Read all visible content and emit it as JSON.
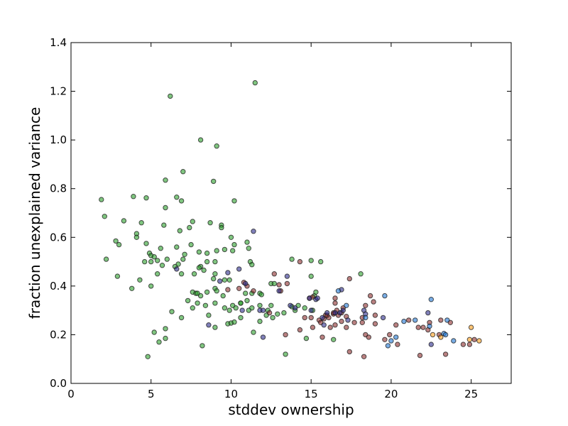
{
  "chart_data": {
    "type": "scatter",
    "title": "",
    "xlabel": "stddev ownership",
    "ylabel": "fraction unexplained variance",
    "xlim": [
      0,
      27.5
    ],
    "ylim": [
      0,
      1.4
    ],
    "xticks": [
      "0",
      "5",
      "10",
      "15",
      "20",
      "25"
    ],
    "yticks": [
      "0.0",
      "0.2",
      "0.4",
      "0.6",
      "0.8",
      "1.0",
      "1.2",
      "1.4"
    ],
    "grid": false,
    "legend": "none",
    "series": [
      {
        "color": "#2ca02c",
        "points": [
          [
            6.2,
            1.18
          ],
          [
            11.5,
            1.235
          ],
          [
            8.1,
            1.0
          ],
          [
            9.1,
            0.975
          ],
          [
            7.0,
            0.87
          ],
          [
            5.9,
            0.835
          ],
          [
            8.9,
            0.83
          ],
          [
            6.6,
            0.765
          ],
          [
            4.7,
            0.762
          ],
          [
            3.9,
            0.768
          ],
          [
            6.9,
            0.75
          ],
          [
            10.2,
            0.75
          ],
          [
            1.9,
            0.755
          ],
          [
            2.1,
            0.686
          ],
          [
            5.9,
            0.722
          ],
          [
            4.4,
            0.66
          ],
          [
            3.3,
            0.668
          ],
          [
            9.4,
            0.65
          ],
          [
            8.7,
            0.66
          ],
          [
            9.4,
            0.64
          ],
          [
            7.6,
            0.665
          ],
          [
            5.8,
            0.65
          ],
          [
            7.4,
            0.64
          ],
          [
            6.8,
            0.627
          ],
          [
            4.1,
            0.615
          ],
          [
            4.1,
            0.6
          ],
          [
            4.9,
            0.535
          ],
          [
            10.0,
            0.6
          ],
          [
            10.2,
            0.57
          ],
          [
            3.0,
            0.57
          ],
          [
            2.8,
            0.585
          ],
          [
            4.7,
            0.575
          ],
          [
            5.6,
            0.555
          ],
          [
            6.6,
            0.56
          ],
          [
            7.5,
            0.57
          ],
          [
            8.0,
            0.54
          ],
          [
            9.1,
            0.545
          ],
          [
            9.6,
            0.55
          ],
          [
            10.1,
            0.545
          ],
          [
            11.0,
            0.58
          ],
          [
            11.1,
            0.555
          ],
          [
            2.2,
            0.51
          ],
          [
            5.0,
            0.525
          ],
          [
            5.2,
            0.52
          ],
          [
            5.4,
            0.505
          ],
          [
            4.6,
            0.5
          ],
          [
            5.0,
            0.5
          ],
          [
            6.0,
            0.51
          ],
          [
            6.7,
            0.49
          ],
          [
            7.0,
            0.51
          ],
          [
            7.1,
            0.53
          ],
          [
            8.5,
            0.535
          ],
          [
            8.1,
            0.48
          ],
          [
            8.3,
            0.465
          ],
          [
            8.5,
            0.5
          ],
          [
            9.0,
            0.5
          ],
          [
            11.2,
            0.5
          ],
          [
            11.3,
            0.488
          ],
          [
            5.7,
            0.485
          ],
          [
            2.9,
            0.44
          ],
          [
            3.8,
            0.39
          ],
          [
            4.3,
            0.425
          ],
          [
            5.0,
            0.4
          ],
          [
            5.4,
            0.45
          ],
          [
            6.5,
            0.48
          ],
          [
            6.9,
            0.45
          ],
          [
            7.7,
            0.45
          ],
          [
            8.0,
            0.475
          ],
          [
            9.0,
            0.45
          ],
          [
            9.9,
            0.425
          ],
          [
            8.9,
            0.43
          ],
          [
            7.6,
            0.375
          ],
          [
            7.8,
            0.37
          ],
          [
            7.9,
            0.37
          ],
          [
            8.1,
            0.36
          ],
          [
            8.5,
            0.375
          ],
          [
            9.0,
            0.39
          ],
          [
            9.1,
            0.38
          ],
          [
            9.5,
            0.36
          ],
          [
            10.1,
            0.32
          ],
          [
            10.3,
            0.31
          ],
          [
            10.6,
            0.33
          ],
          [
            11.0,
            0.34
          ],
          [
            11.3,
            0.31
          ],
          [
            11.8,
            0.32
          ],
          [
            12.5,
            0.32
          ],
          [
            7.3,
            0.34
          ],
          [
            7.6,
            0.31
          ],
          [
            7.9,
            0.33
          ],
          [
            8.4,
            0.32
          ],
          [
            9.0,
            0.33
          ],
          [
            9.6,
            0.31
          ],
          [
            9.9,
            0.3
          ],
          [
            10.6,
            0.33
          ],
          [
            8.6,
            0.28
          ],
          [
            9.0,
            0.23
          ],
          [
            6.9,
            0.27
          ],
          [
            9.8,
            0.245
          ],
          [
            10.0,
            0.248
          ],
          [
            10.2,
            0.252
          ],
          [
            10.6,
            0.27
          ],
          [
            11.4,
            0.21
          ],
          [
            11.8,
            0.255
          ],
          [
            12.2,
            0.28
          ],
          [
            12.3,
            0.3
          ],
          [
            12.6,
            0.27
          ],
          [
            12.9,
            0.285
          ],
          [
            13.3,
            0.29
          ],
          [
            13.8,
            0.315
          ],
          [
            14.2,
            0.32
          ],
          [
            14.6,
            0.31
          ],
          [
            14.0,
            0.3
          ],
          [
            15.1,
            0.3
          ],
          [
            15.2,
            0.36
          ],
          [
            15.3,
            0.375
          ],
          [
            14.7,
            0.185
          ],
          [
            15.6,
            0.5
          ],
          [
            15.0,
            0.505
          ],
          [
            15.0,
            0.44
          ],
          [
            13.8,
            0.51
          ],
          [
            18.1,
            0.45
          ],
          [
            12.5,
            0.41
          ],
          [
            12.7,
            0.41
          ],
          [
            11.3,
            0.37
          ],
          [
            11.8,
            0.37
          ],
          [
            6.3,
            0.295
          ],
          [
            5.9,
            0.225
          ],
          [
            5.2,
            0.21
          ],
          [
            5.5,
            0.17
          ],
          [
            5.9,
            0.185
          ],
          [
            4.8,
            0.11
          ],
          [
            8.2,
            0.155
          ],
          [
            13.4,
            0.12
          ],
          [
            16.4,
            0.18
          ],
          [
            10.9,
            0.37
          ],
          [
            9.6,
            0.425
          ],
          [
            11.1,
            0.3
          ],
          [
            11.9,
            0.365
          ]
        ]
      },
      {
        "color": "#8c2d2d",
        "points": [
          [
            12.7,
            0.45
          ],
          [
            13.5,
            0.41
          ],
          [
            13.0,
            0.405
          ],
          [
            10.8,
            0.415
          ],
          [
            11.0,
            0.4
          ],
          [
            11.4,
            0.38
          ],
          [
            10.5,
            0.39
          ],
          [
            9.8,
            0.385
          ],
          [
            13.1,
            0.38
          ],
          [
            14.3,
            0.5
          ],
          [
            14.9,
            0.35
          ],
          [
            15.1,
            0.355
          ],
          [
            16.5,
            0.35
          ],
          [
            16.5,
            0.33
          ],
          [
            17.4,
            0.43
          ],
          [
            18.4,
            0.32
          ],
          [
            18.7,
            0.36
          ],
          [
            17.0,
            0.31
          ],
          [
            18.2,
            0.27
          ],
          [
            18.2,
            0.25
          ],
          [
            19.0,
            0.28
          ],
          [
            18.9,
            0.335
          ],
          [
            17.2,
            0.275
          ],
          [
            16.9,
            0.29
          ],
          [
            16.7,
            0.28
          ],
          [
            16.6,
            0.3
          ],
          [
            16.4,
            0.285
          ],
          [
            16.1,
            0.27
          ],
          [
            15.9,
            0.28
          ],
          [
            15.8,
            0.265
          ],
          [
            15.5,
            0.26
          ],
          [
            15.6,
            0.25
          ],
          [
            15.0,
            0.27
          ],
          [
            14.6,
            0.27
          ],
          [
            14.3,
            0.22
          ],
          [
            15.1,
            0.23
          ],
          [
            15.7,
            0.19
          ],
          [
            16.2,
            0.23
          ],
          [
            16.5,
            0.24
          ],
          [
            16.9,
            0.255
          ],
          [
            17.2,
            0.23
          ],
          [
            17.4,
            0.13
          ],
          [
            18.3,
            0.11
          ],
          [
            18.4,
            0.2
          ],
          [
            18.6,
            0.19
          ],
          [
            19.0,
            0.245
          ],
          [
            19.6,
            0.18
          ],
          [
            20.3,
            0.24
          ],
          [
            20.4,
            0.16
          ],
          [
            21.1,
            0.26
          ],
          [
            21.7,
            0.23
          ],
          [
            22.0,
            0.23
          ],
          [
            22.4,
            0.25
          ],
          [
            22.3,
            0.22
          ],
          [
            21.8,
            0.115
          ],
          [
            23.1,
            0.26
          ],
          [
            23.4,
            0.12
          ],
          [
            23.7,
            0.25
          ],
          [
            23.0,
            0.2
          ],
          [
            24.5,
            0.16
          ],
          [
            24.9,
            0.16
          ],
          [
            25.2,
            0.18
          ],
          [
            16.0,
            0.28
          ],
          [
            16.4,
            0.29
          ],
          [
            17.7,
            0.25
          ],
          [
            19.9,
            0.2
          ],
          [
            12.4,
            0.29
          ],
          [
            13.4,
            0.2
          ]
        ]
      },
      {
        "color": "#2c2c8c",
        "points": [
          [
            11.4,
            0.625
          ],
          [
            6.6,
            0.47
          ],
          [
            10.9,
            0.41
          ],
          [
            9.3,
            0.42
          ],
          [
            9.8,
            0.455
          ],
          [
            10.5,
            0.47
          ],
          [
            11.8,
            0.3
          ],
          [
            12.0,
            0.3
          ],
          [
            13.0,
            0.38
          ],
          [
            13.5,
            0.44
          ],
          [
            13.7,
            0.32
          ],
          [
            14.0,
            0.31
          ],
          [
            14.9,
            0.35
          ],
          [
            15.3,
            0.345
          ],
          [
            15.4,
            0.35
          ],
          [
            15.7,
            0.27
          ],
          [
            16.0,
            0.29
          ],
          [
            16.8,
            0.29
          ],
          [
            16.9,
            0.385
          ],
          [
            17.0,
            0.3
          ],
          [
            17.3,
            0.26
          ],
          [
            18.3,
            0.3
          ],
          [
            18.4,
            0.285
          ],
          [
            16.5,
            0.29
          ],
          [
            15.8,
            0.24
          ],
          [
            15.0,
            0.3
          ],
          [
            12.0,
            0.19
          ],
          [
            8.6,
            0.24
          ],
          [
            10.7,
            0.3
          ],
          [
            19.5,
            0.27
          ],
          [
            22.3,
            0.29
          ],
          [
            22.5,
            0.16
          ]
        ]
      },
      {
        "color": "#1f77d4",
        "points": [
          [
            19.6,
            0.36
          ],
          [
            22.5,
            0.345
          ],
          [
            20.8,
            0.255
          ],
          [
            21.5,
            0.26
          ],
          [
            22.4,
            0.235
          ],
          [
            23.3,
            0.205
          ],
          [
            23.5,
            0.26
          ],
          [
            23.9,
            0.175
          ],
          [
            19.8,
            0.155
          ],
          [
            20.3,
            0.19
          ],
          [
            20.0,
            0.175
          ],
          [
            18.4,
            0.27
          ],
          [
            16.7,
            0.38
          ],
          [
            17.2,
            0.32
          ],
          [
            23.4,
            0.2
          ]
        ]
      },
      {
        "color": "#ff9e1a",
        "points": [
          [
            22.6,
            0.2
          ],
          [
            23.1,
            0.19
          ],
          [
            25.0,
            0.23
          ],
          [
            25.5,
            0.175
          ],
          [
            24.9,
            0.18
          ]
        ]
      }
    ]
  }
}
